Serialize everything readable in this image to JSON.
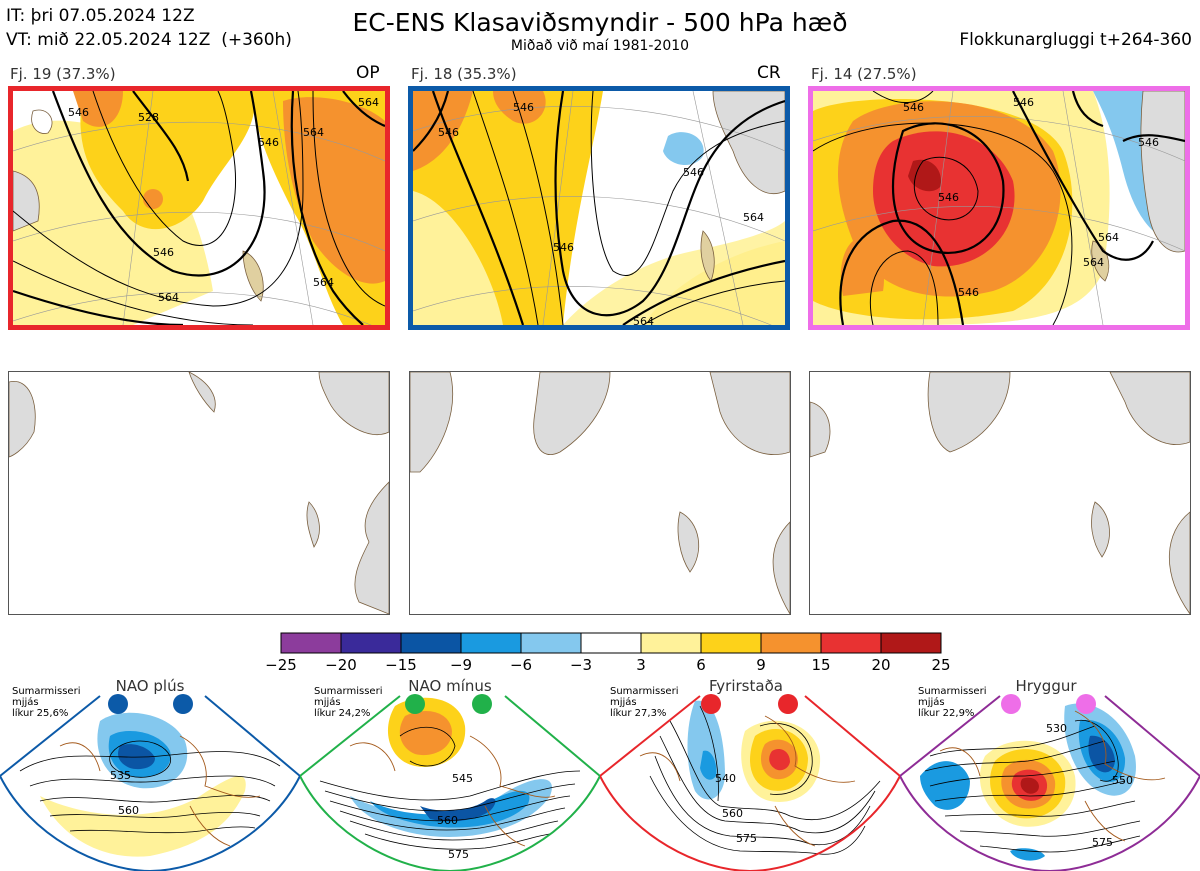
{
  "header": {
    "it_line": "IT: þri 07.05.2024 12Z",
    "vt_line": "VT: mið 22.05.2024 12Z  (+360h)",
    "title": "EC-ENS Klasaviðsmyndir - 500 hPa hæð",
    "subtitle": "Miðað við maí 1981-2010",
    "window": "Flokkunargluggi t+264-360"
  },
  "clusters": [
    {
      "label": "Fj. 19 (37.3%)",
      "tag": "OP",
      "border": "#e8262b",
      "contours": [
        "546",
        "546",
        "546",
        "564",
        "564",
        "564",
        "528",
        "564"
      ]
    },
    {
      "label": "Fj. 18 (35.3%)",
      "tag": "CR",
      "border": "#0c5aa8",
      "contours": [
        "546",
        "546",
        "546",
        "546",
        "564",
        "564"
      ]
    },
    {
      "label": "Fj. 14 (27.5%)",
      "tag": "",
      "border": "#ee6ee8",
      "contours": [
        "546",
        "546",
        "546",
        "546",
        "546",
        "564",
        "564"
      ]
    }
  ],
  "colorbar": {
    "colors": [
      "#8c3c9c",
      "#3a2a9a",
      "#0b55a4",
      "#1a9ae0",
      "#84c8ee",
      "#ffffff",
      "#fff29a",
      "#fdd21a",
      "#f5922e",
      "#e83232",
      "#b01818"
    ],
    "ticks": [
      "−25",
      "−20",
      "−15",
      "−9",
      "−6",
      "−3",
      "3",
      "6",
      "9",
      "15",
      "20",
      "25"
    ]
  },
  "regimes": [
    {
      "name": "NAO plús",
      "dot_color": "#0c5aa8",
      "line1": "Sumarmisseri",
      "line2": "mjjás",
      "line3": "líkur 25,6%",
      "border": "#0c5aa8",
      "labels": [
        "535",
        "560"
      ]
    },
    {
      "name": "NAO mínus",
      "dot_color": "#21b14a",
      "line1": "Sumarmisseri",
      "line2": "mjjás",
      "line3": "líkur 24,2%",
      "border": "#21b14a",
      "labels": [
        "545",
        "560",
        "575"
      ]
    },
    {
      "name": "Fyrirstaða",
      "dot_color": "#e8262b",
      "line1": "Sumarmisseri",
      "line2": "mjjás",
      "line3": "líkur 27,3%",
      "border": "#e8262b",
      "labels": [
        "540",
        "560",
        "575"
      ]
    },
    {
      "name": "Hryggur",
      "dot_color": "#ee6ee8",
      "line1": "Sumarmisseri",
      "line2": "mjjás",
      "line3": "líkur 22,9%",
      "border": "#8e2c96",
      "labels": [
        "530",
        "550",
        "575"
      ]
    }
  ]
}
